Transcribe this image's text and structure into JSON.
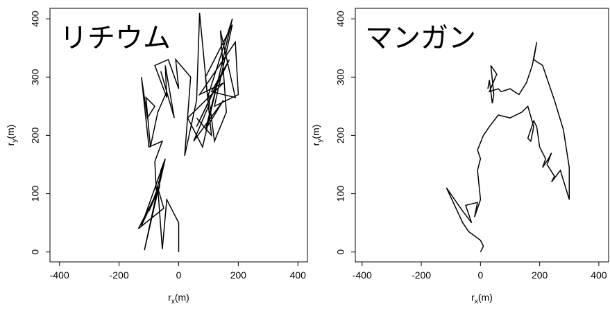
{
  "chart_data": [
    {
      "type": "line",
      "title": "リチウム",
      "x_label": "r",
      "x_label_sub": "x",
      "x_label_unit": "(m)",
      "y_label": "r",
      "y_label_sub": "y",
      "y_label_unit": "(m)",
      "xlim": [
        -432,
        432
      ],
      "ylim": [
        -17,
        418
      ],
      "xticks": [
        -400,
        -200,
        0,
        200,
        400
      ],
      "yticks": [
        0,
        100,
        200,
        300,
        400
      ],
      "color": "#000000",
      "x": [
        0,
        0,
        -40,
        -55,
        -70,
        -115,
        -45,
        -125,
        -75,
        -135,
        -50,
        -70,
        -100,
        -65,
        -60,
        -45,
        -75,
        -80,
        -55,
        -100,
        -125,
        -105,
        -80,
        -110,
        -95,
        -70,
        -40,
        -60,
        -15,
        -45,
        -40,
        -80,
        -35,
        0,
        -10,
        40,
        20,
        60,
        70,
        100,
        50,
        150,
        90,
        130,
        60,
        170,
        110,
        190,
        140,
        160,
        120,
        100,
        180,
        80,
        30,
        150,
        70,
        190,
        200,
        120,
        180,
        90,
        110,
        60
      ],
      "values": [
        0,
        50,
        90,
        5,
        110,
        3,
        160,
        45,
        100,
        40,
        75,
        110,
        70,
        110,
        140,
        160,
        105,
        155,
        190,
        180,
        300,
        230,
        250,
        265,
        180,
        240,
        275,
        310,
        230,
        320,
        265,
        320,
        330,
        280,
        330,
        300,
        165,
        260,
        410,
        250,
        190,
        260,
        210,
        290,
        215,
        330,
        275,
        265,
        380,
        240,
        190,
        270,
        400,
        180,
        230,
        290,
        270,
        360,
        270,
        250,
        390,
        300,
        200,
        230
      ]
    },
    {
      "type": "line",
      "title": "マンガン",
      "x_label": "r",
      "x_label_sub": "x",
      "x_label_unit": "(m)",
      "y_label": "r",
      "y_label_sub": "y",
      "y_label_unit": "(m)",
      "xlim": [
        -423,
        433
      ],
      "ylim": [
        -17,
        418
      ],
      "xticks": [
        -400,
        -200,
        0,
        200,
        400
      ],
      "yticks": [
        0,
        100,
        200,
        300,
        400
      ],
      "color": "#000000",
      "x": [
        0,
        10,
        0,
        -40,
        -60,
        -115,
        -60,
        -30,
        -50,
        -10,
        -20,
        0,
        -10,
        0,
        -10,
        10,
        30,
        60,
        100,
        140,
        160,
        180,
        170,
        160,
        180,
        190,
        200,
        220,
        210,
        230,
        240,
        225,
        250,
        240,
        270,
        300,
        300,
        280,
        250,
        210,
        180,
        190,
        175,
        155,
        130,
        100,
        70,
        60,
        30,
        55,
        35,
        45,
        40,
        30,
        25
      ],
      "values": [
        0,
        10,
        20,
        35,
        50,
        110,
        70,
        50,
        80,
        85,
        60,
        90,
        140,
        160,
        175,
        200,
        215,
        235,
        230,
        240,
        250,
        215,
        190,
        195,
        225,
        215,
        180,
        160,
        145,
        160,
        170,
        150,
        130,
        120,
        140,
        90,
        145,
        210,
        260,
        320,
        330,
        360,
        320,
        290,
        270,
        280,
        275,
        280,
        275,
        305,
        320,
        270,
        255,
        295,
        280
      ]
    }
  ]
}
